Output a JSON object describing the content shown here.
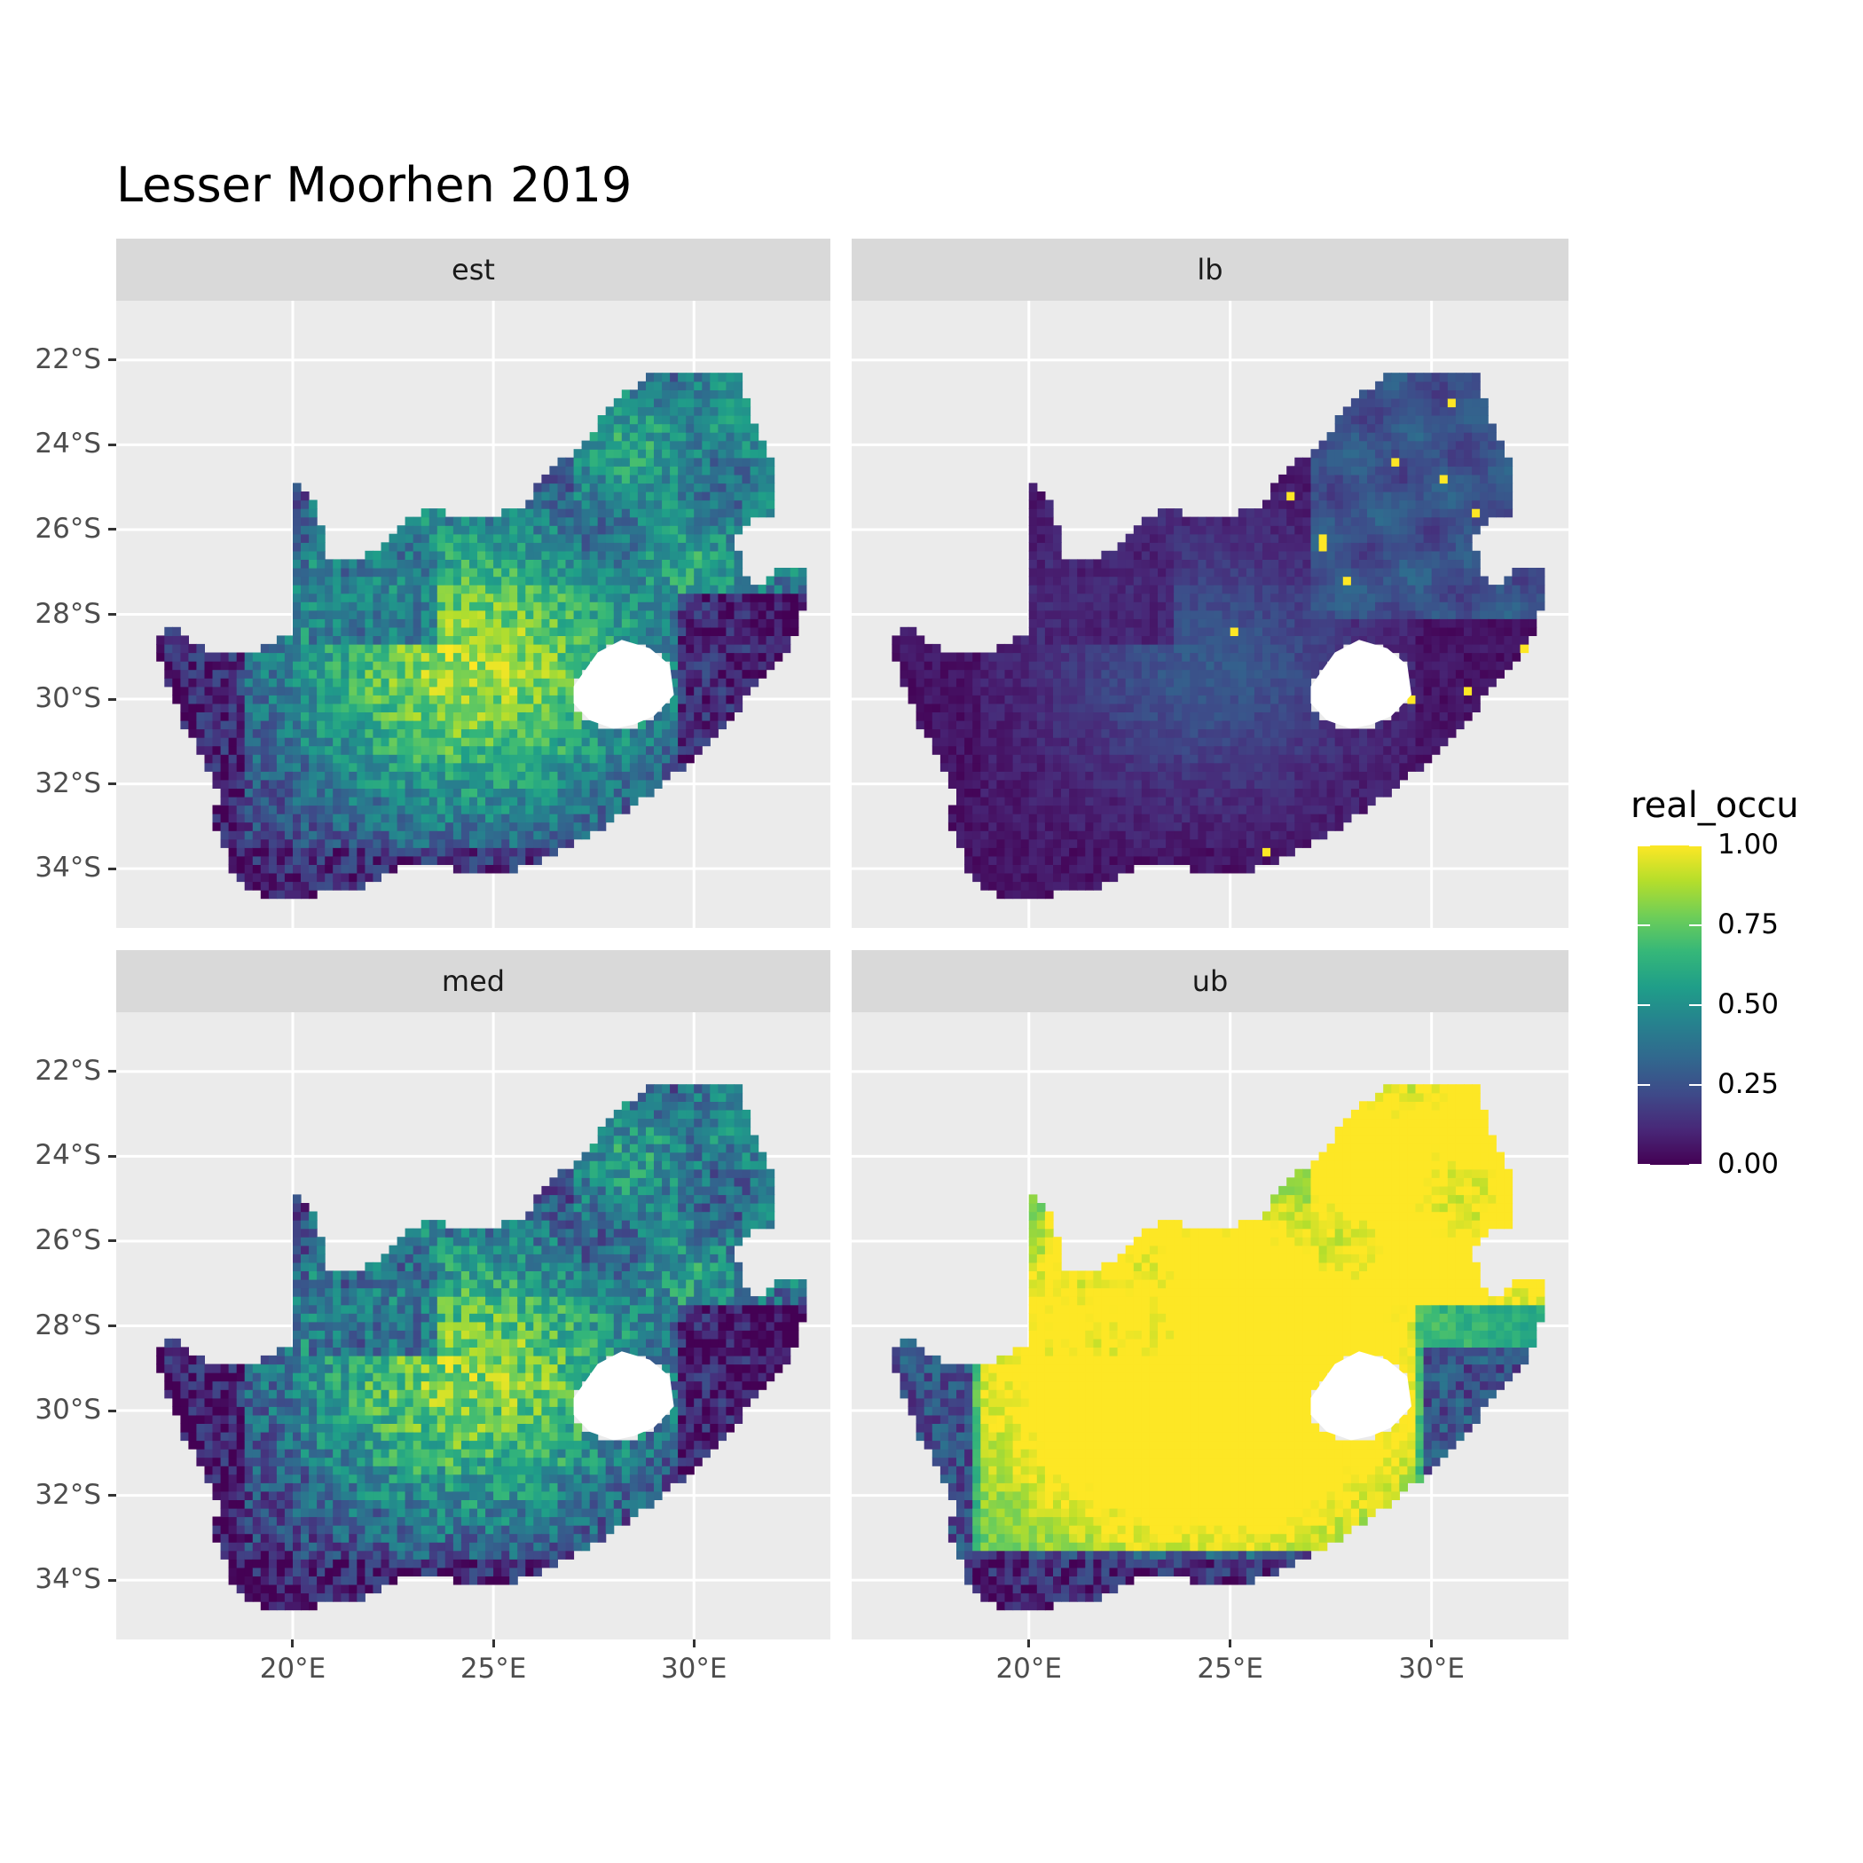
{
  "figure": {
    "title": "Lesser Moorhen 2019",
    "colors": {
      "panel_background": "#ebebeb",
      "grid": "#ffffff",
      "strip_background": "#d9d9d9",
      "no_data_hole": "#ffffff",
      "palette": "viridis"
    }
  },
  "map_data": {
    "type": "faceted raster map",
    "region": "South Africa",
    "variable": "real_occu",
    "facets": [
      {
        "label": "est",
        "pattern": "mixed, high in the interior (0.75-1.0), low along the west and south coasts and the east (0.0-0.35)"
      },
      {
        "label": "lb",
        "pattern": "mostly low (0.0-0.35), moderate in the northeast, scattered high cells"
      },
      {
        "label": "med",
        "pattern": "similar to est, high in the interior, low along coasts and east"
      },
      {
        "label": "ub",
        "pattern": "mostly high (1.0) across the interior and north, low along the south and west coasts"
      }
    ],
    "x_axis": {
      "ticks": [
        "20°E",
        "25°E",
        "30°E"
      ],
      "values": [
        20,
        25,
        30
      ],
      "range": [
        15.6,
        33.4
      ]
    },
    "y_axis": {
      "ticks": [
        "22°S",
        "24°S",
        "26°S",
        "28°S",
        "30°S",
        "32°S",
        "34°S"
      ],
      "values": [
        -22,
        -24,
        -26,
        -28,
        -30,
        -32,
        -34
      ],
      "range": [
        -35.4,
        -20.6
      ]
    }
  },
  "legend": {
    "title": "real_occu",
    "ticks": [
      "1.00",
      "0.75",
      "0.50",
      "0.25",
      "0.00"
    ],
    "values": [
      1.0,
      0.75,
      0.5,
      0.25,
      0.0
    ]
  }
}
